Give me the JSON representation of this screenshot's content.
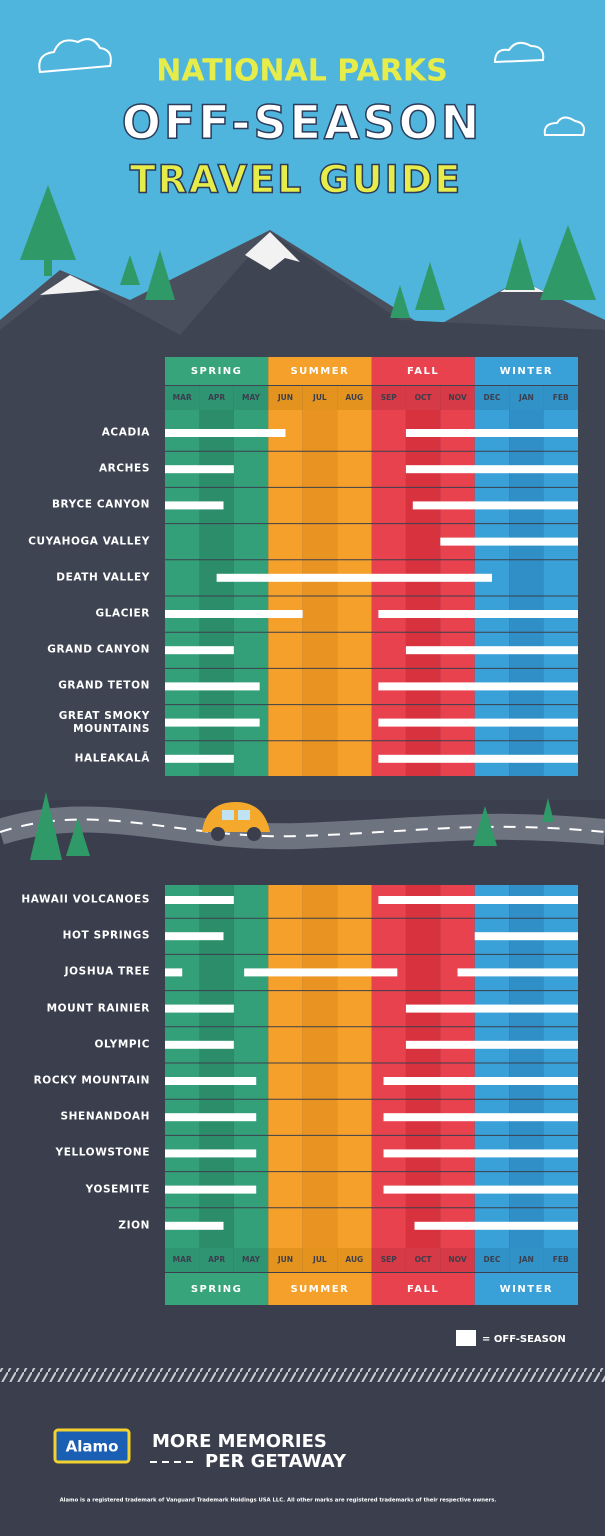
{
  "header": {
    "line1": "NATIONAL PARKS",
    "line2": "OFF-SEASON",
    "line3": "TRAVEL GUIDE"
  },
  "seasons": [
    "SPRING",
    "SUMMER",
    "FALL",
    "WINTER"
  ],
  "months": [
    "MAR",
    "APR",
    "MAY",
    "JUN",
    "JUL",
    "AUG",
    "SEP",
    "OCT",
    "NOV",
    "DEC",
    "JAN",
    "FEB"
  ],
  "scale": [
    0,
    12
  ],
  "tables": [
    {
      "parks": [
        {
          "name": "ACADIA",
          "off_season": [
            [
              0,
              3.5
            ],
            [
              7,
              12
            ]
          ]
        },
        {
          "name": "ARCHES",
          "off_season": [
            [
              0,
              2
            ],
            [
              7,
              12
            ]
          ]
        },
        {
          "name": "BRYCE CANYON",
          "off_season": [
            [
              0,
              1.7
            ],
            [
              7.2,
              12
            ]
          ]
        },
        {
          "name": "CUYAHOGA VALLEY",
          "off_season": [
            [
              8,
              12
            ]
          ]
        },
        {
          "name": "DEATH VALLEY",
          "off_season": [
            [
              1.5,
              9.5
            ]
          ]
        },
        {
          "name": "GLACIER",
          "off_season": [
            [
              0,
              4
            ],
            [
              6.2,
              12
            ]
          ]
        },
        {
          "name": "GRAND CANYON",
          "off_season": [
            [
              0,
              2
            ],
            [
              7,
              12
            ]
          ]
        },
        {
          "name": "GRAND TETON",
          "off_season": [
            [
              0,
              2.75
            ],
            [
              6.2,
              12
            ]
          ]
        },
        {
          "name": "GREAT SMOKY MOUNTAINS",
          "off_season": [
            [
              0,
              2.75
            ],
            [
              6.2,
              12
            ]
          ]
        },
        {
          "name": "HALEAKALĀ",
          "off_season": [
            [
              0,
              2
            ],
            [
              6.2,
              12
            ]
          ]
        }
      ]
    },
    {
      "parks": [
        {
          "name": "HAWAII VOLCANOES",
          "off_season": [
            [
              0,
              2
            ],
            [
              6.2,
              12
            ]
          ]
        },
        {
          "name": "HOT SPRINGS",
          "off_season": [
            [
              0,
              1.7
            ],
            [
              9,
              12
            ]
          ]
        },
        {
          "name": "JOSHUA TREE",
          "off_season": [
            [
              0,
              0.5
            ],
            [
              2.3,
              6.75
            ],
            [
              8.5,
              12
            ]
          ]
        },
        {
          "name": "MOUNT RAINIER",
          "off_season": [
            [
              0,
              2
            ],
            [
              7,
              12
            ]
          ]
        },
        {
          "name": "OLYMPIC",
          "off_season": [
            [
              0,
              2
            ],
            [
              7,
              12
            ]
          ]
        },
        {
          "name": "ROCKY MOUNTAIN",
          "off_season": [
            [
              0,
              2.65
            ],
            [
              6.35,
              12
            ]
          ]
        },
        {
          "name": "SHENANDOAH",
          "off_season": [
            [
              0,
              2.65
            ],
            [
              6.35,
              12
            ]
          ]
        },
        {
          "name": "YELLOWSTONE",
          "off_season": [
            [
              0,
              2.65
            ],
            [
              6.35,
              12
            ]
          ]
        },
        {
          "name": "YOSEMITE",
          "off_season": [
            [
              0,
              2.65
            ],
            [
              6.35,
              12
            ]
          ]
        },
        {
          "name": "ZION",
          "off_season": [
            [
              0,
              1.7
            ],
            [
              7.25,
              12
            ]
          ]
        }
      ]
    }
  ],
  "legend": "= OFF-SEASON",
  "footer": {
    "logo": "Alamo",
    "slogan_line1": "MORE MEMORIES",
    "slogan_line2": "PER GETAWAY",
    "disclaimer": "Alamo is a registered trademark of Vanguard Trademark Holdings USA LLC. All other marks are registered trademarks of their respective owners."
  }
}
